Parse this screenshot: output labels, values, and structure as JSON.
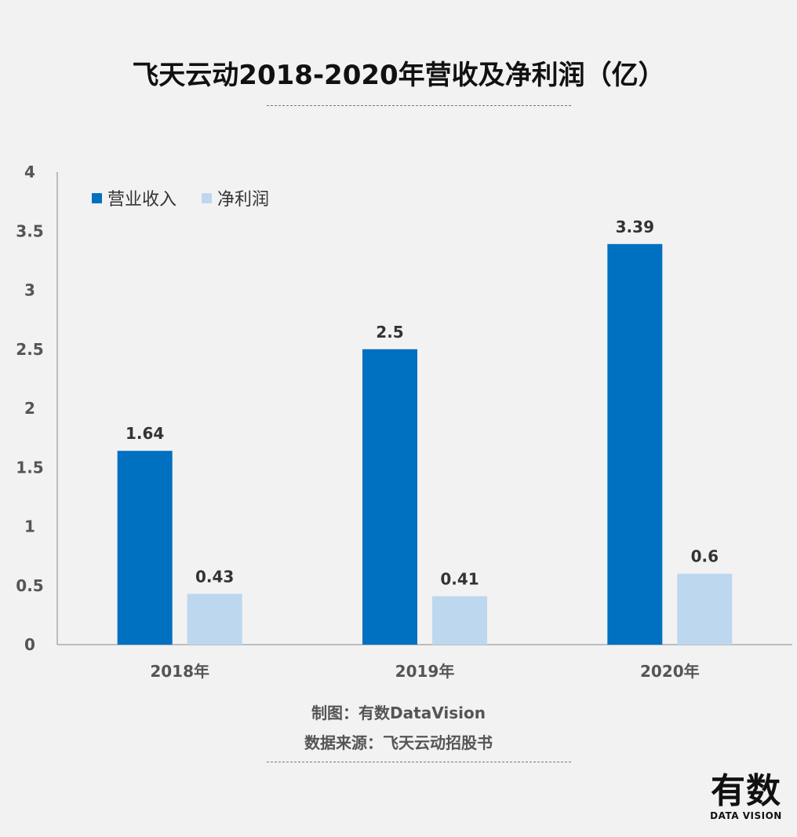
{
  "chart_data": {
    "type": "bar",
    "title": "飞天云动2018-2020年营收及净利润（亿）",
    "categories": [
      "2018年",
      "2019年",
      "2020年"
    ],
    "series": [
      {
        "name": "营业收入",
        "values": [
          1.64,
          2.5,
          3.39
        ],
        "color": "#0070c0"
      },
      {
        "name": "净利润",
        "values": [
          0.43,
          0.41,
          0.6
        ],
        "color": "#bdd7ee"
      }
    ],
    "ylim": [
      0,
      4
    ],
    "yticks": [
      "0",
      "0.5",
      "1",
      "1.5",
      "2",
      "2.5",
      "3",
      "3.5",
      "4"
    ],
    "grid": false,
    "legend": "top-left"
  },
  "footer": {
    "credit": "制图：有数DataVision",
    "source": "数据来源：飞天云动招股书"
  },
  "logo": {
    "main": "有数",
    "sub": "DATA VISION"
  }
}
